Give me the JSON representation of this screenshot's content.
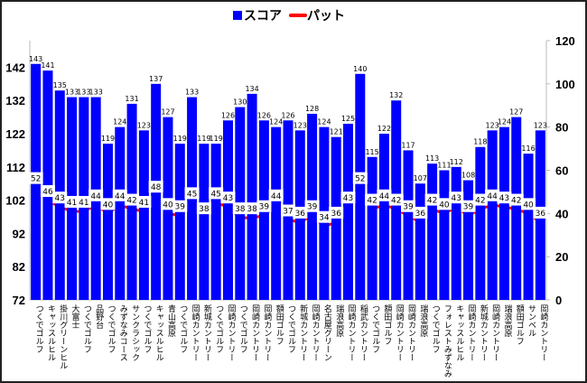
{
  "chart_data": {
    "type": "bar",
    "title": "",
    "legend": {
      "position": "top",
      "entries": [
        "スコア",
        "パット"
      ]
    },
    "categories": [
      "つくでゴルフ",
      "キャッスルヒル",
      "掛川グリーンヒル",
      "大富士",
      "つくでゴルフ",
      "品野台",
      "つくでゴルフ",
      "みずなみコース",
      "サンクラシック",
      "つくでゴルフ",
      "キャッスルヒル",
      "青山高原",
      "つくでゴルフ",
      "岡崎カントリー",
      "新城カントリー",
      "つくでゴルフ",
      "岡崎カントリー",
      "つくでゴルフ",
      "岡崎カントリー",
      "岡崎カントリー",
      "額田ゴルフ",
      "つくでゴルフ",
      "新城カントリー",
      "岡崎カントリー",
      "名古屋グリーン",
      "瑞浪高原",
      "岡崎カントリー",
      "稲武カントリー",
      "つくでゴルフ",
      "額田ゴルフ",
      "岡崎カントリー",
      "岡崎カントリー",
      "瑞浪高原",
      "つくでゴルフ",
      "フォレストみずなみ",
      "キャッスルヒル",
      "岡崎カントリー",
      "新城カントリー",
      "岡崎カントリー",
      "瑞浪高原",
      "額田ゴルフ",
      "サンベル",
      "岡崎カントリー"
    ],
    "series": [
      {
        "name": "スコア",
        "type": "bar",
        "axis": "left",
        "color": "#0000ff",
        "values": [
          143,
          141,
          135,
          133,
          133,
          133,
          119,
          124,
          131,
          123,
          137,
          127,
          119,
          133,
          119,
          119,
          126,
          130,
          134,
          126,
          124,
          126,
          123,
          128,
          124,
          121,
          125,
          140,
          115,
          122,
          132,
          117,
          107,
          113,
          111,
          112,
          108,
          118,
          123,
          124,
          127,
          116,
          123
        ]
      },
      {
        "name": "パット",
        "type": "line",
        "axis": "right",
        "color": "#ff0000",
        "values": [
          52,
          46,
          43,
          41,
          41,
          44,
          40,
          44,
          42,
          41,
          48,
          40,
          39,
          45,
          38,
          45,
          43,
          38,
          38,
          39,
          44,
          37,
          36,
          39,
          34,
          36,
          43,
          52,
          42,
          44,
          42,
          39,
          36,
          42,
          40,
          43,
          39,
          42,
          44,
          43,
          42,
          40,
          36
        ]
      }
    ],
    "y_left": {
      "range": [
        72,
        150
      ],
      "ticks": [
        72,
        82,
        92,
        102,
        112,
        122,
        132,
        142
      ]
    },
    "y_right": {
      "range": [
        0,
        120
      ],
      "ticks": [
        0,
        20,
        40,
        60,
        80,
        100,
        120
      ]
    },
    "grid": false
  }
}
